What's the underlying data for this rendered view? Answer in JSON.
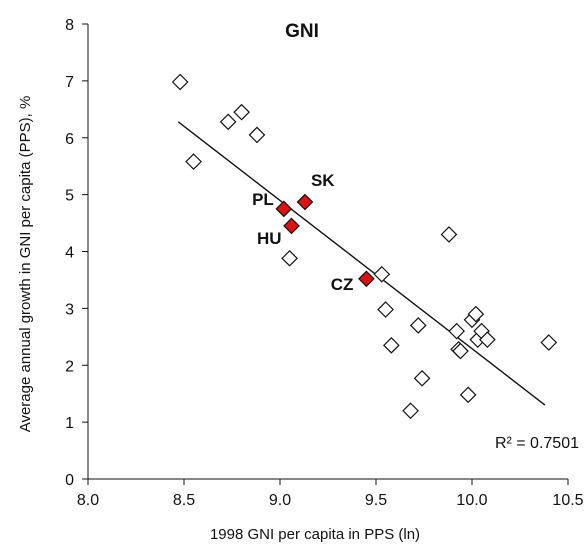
{
  "chart_data": {
    "type": "scatter",
    "title": "GNI",
    "xlabel": "1998 GNI per capita in PPS (ln)",
    "ylabel": "Average annual growth in GNI per capita (PPS), %",
    "xlim": [
      8.0,
      10.5
    ],
    "ylim": [
      0,
      8
    ],
    "xticks": [
      "8.0",
      "8.5",
      "9.0",
      "9.5",
      "10.0",
      "10.5"
    ],
    "yticks": [
      "0",
      "1",
      "2",
      "3",
      "4",
      "5",
      "6",
      "7",
      "8"
    ],
    "grid": false,
    "colors": {
      "other": "#ffffff",
      "highlight": "#dd1111",
      "stroke": "#111111"
    },
    "series": [
      {
        "marker": "open-diamond",
        "points": [
          [
            8.48,
            6.98
          ],
          [
            8.55,
            5.58
          ],
          [
            8.73,
            6.28
          ],
          [
            8.8,
            6.45
          ],
          [
            8.88,
            6.05
          ],
          [
            9.05,
            3.88
          ],
          [
            9.53,
            3.6
          ],
          [
            9.55,
            2.98
          ],
          [
            9.58,
            2.35
          ],
          [
            9.68,
            1.2
          ],
          [
            9.72,
            2.7
          ],
          [
            9.74,
            1.77
          ],
          [
            9.88,
            4.3
          ],
          [
            9.92,
            2.6
          ],
          [
            9.93,
            2.28
          ],
          [
            9.94,
            2.25
          ],
          [
            9.98,
            1.48
          ],
          [
            10.0,
            2.8
          ],
          [
            10.02,
            2.9
          ],
          [
            10.03,
            2.45
          ],
          [
            10.05,
            2.6
          ],
          [
            10.08,
            2.45
          ],
          [
            10.4,
            2.4
          ]
        ]
      },
      {
        "marker": "filled-diamond",
        "points": [
          {
            "label": "PL",
            "x": 9.02,
            "y": 4.75
          },
          {
            "label": "SK",
            "x": 9.13,
            "y": 4.87
          },
          {
            "label": "HU",
            "x": 9.06,
            "y": 4.45
          },
          {
            "label": "CZ",
            "x": 9.45,
            "y": 3.52
          }
        ]
      }
    ],
    "trendline": {
      "type": "linear",
      "x": [
        8.47,
        10.38
      ],
      "y": [
        6.28,
        1.3
      ]
    },
    "annotation": "R² = 0.7501"
  }
}
